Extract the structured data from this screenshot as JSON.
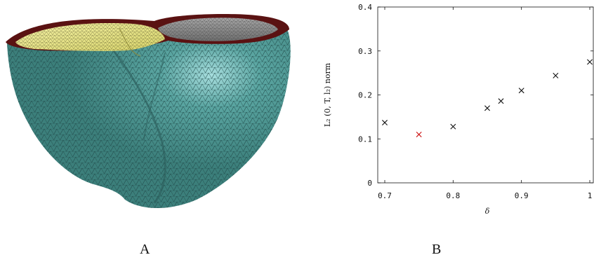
{
  "panels": {
    "a_label": "A",
    "b_label": "B"
  },
  "illustration": {
    "type": "3d-mesh-heart",
    "colors": {
      "mesh": "#4f9793",
      "mesh_light": "#7cc6c2",
      "cavity_left": "#e9e58a",
      "cavity_right": "#8a8a8a",
      "rim": "#5a1212",
      "wire": "#1a3a3a"
    }
  },
  "chart_data": {
    "type": "scatter",
    "xlabel": "δ",
    "ylabel": "L₂ (0, T, l₂) norm",
    "xlim": [
      0.7,
      1.0
    ],
    "ylim": [
      0,
      0.4
    ],
    "x_ticks": [
      "0.7",
      "0.8",
      "0.9",
      "1"
    ],
    "y_ticks": [
      "0",
      "0.1",
      "0.2",
      "0.3",
      "0.4"
    ],
    "grid": false,
    "marker": "x",
    "points": [
      {
        "x": 0.7,
        "y": 0.137,
        "color": "#111111"
      },
      {
        "x": 0.75,
        "y": 0.11,
        "color": "#cc1111"
      },
      {
        "x": 0.8,
        "y": 0.128,
        "color": "#111111"
      },
      {
        "x": 0.85,
        "y": 0.17,
        "color": "#111111"
      },
      {
        "x": 0.87,
        "y": 0.186,
        "color": "#111111"
      },
      {
        "x": 0.9,
        "y": 0.21,
        "color": "#111111"
      },
      {
        "x": 0.95,
        "y": 0.244,
        "color": "#111111"
      },
      {
        "x": 1.0,
        "y": 0.275,
        "color": "#111111"
      }
    ]
  }
}
